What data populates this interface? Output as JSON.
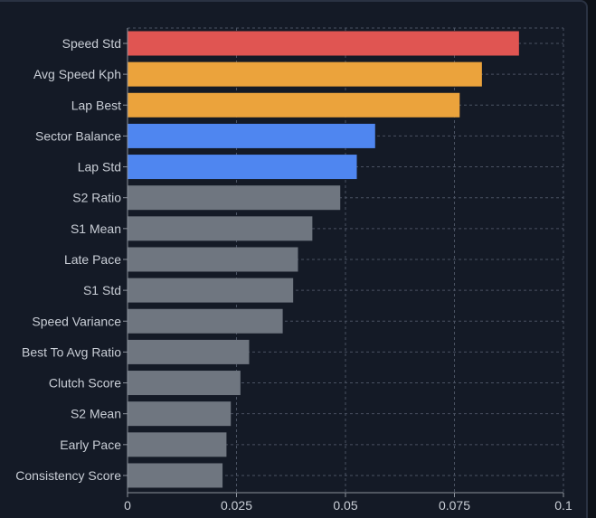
{
  "chart_data": {
    "type": "bar",
    "orientation": "horizontal",
    "title": "",
    "xlabel": "",
    "ylabel": "",
    "xlim": [
      0,
      0.1
    ],
    "grid": true,
    "categories": [
      "Speed Std",
      "Avg Speed Kph",
      "Lap Best",
      "Sector Balance",
      "Lap Std",
      "S2 Ratio",
      "S1 Mean",
      "Late Pace",
      "S1 Std",
      "Speed Variance",
      "Best To Avg Ratio",
      "Clutch Score",
      "S2 Mean",
      "Early Pace",
      "Consistency Score"
    ],
    "values": [
      0.0898,
      0.0813,
      0.0762,
      0.0568,
      0.0526,
      0.0488,
      0.0424,
      0.0391,
      0.038,
      0.0356,
      0.0279,
      0.0259,
      0.0237,
      0.0227,
      0.0218
    ],
    "bar_colors": [
      "#e05552",
      "#eba33c",
      "#eba33c",
      "#4f86f0",
      "#4f86f0",
      "#6f7680",
      "#6f7680",
      "#6f7680",
      "#6f7680",
      "#6f7680",
      "#6f7680",
      "#6f7680",
      "#6f7680",
      "#6f7680",
      "#6f7680"
    ],
    "x_ticks": [
      0,
      0.025,
      0.05,
      0.075,
      0.1
    ],
    "x_tick_labels": [
      "0",
      "0.025",
      "0.05",
      "0.075",
      "0.1"
    ]
  },
  "colors": {
    "background": "#141a26",
    "grid": "#4a5262",
    "axis": "#8b919b",
    "text": "#c9ced6"
  }
}
